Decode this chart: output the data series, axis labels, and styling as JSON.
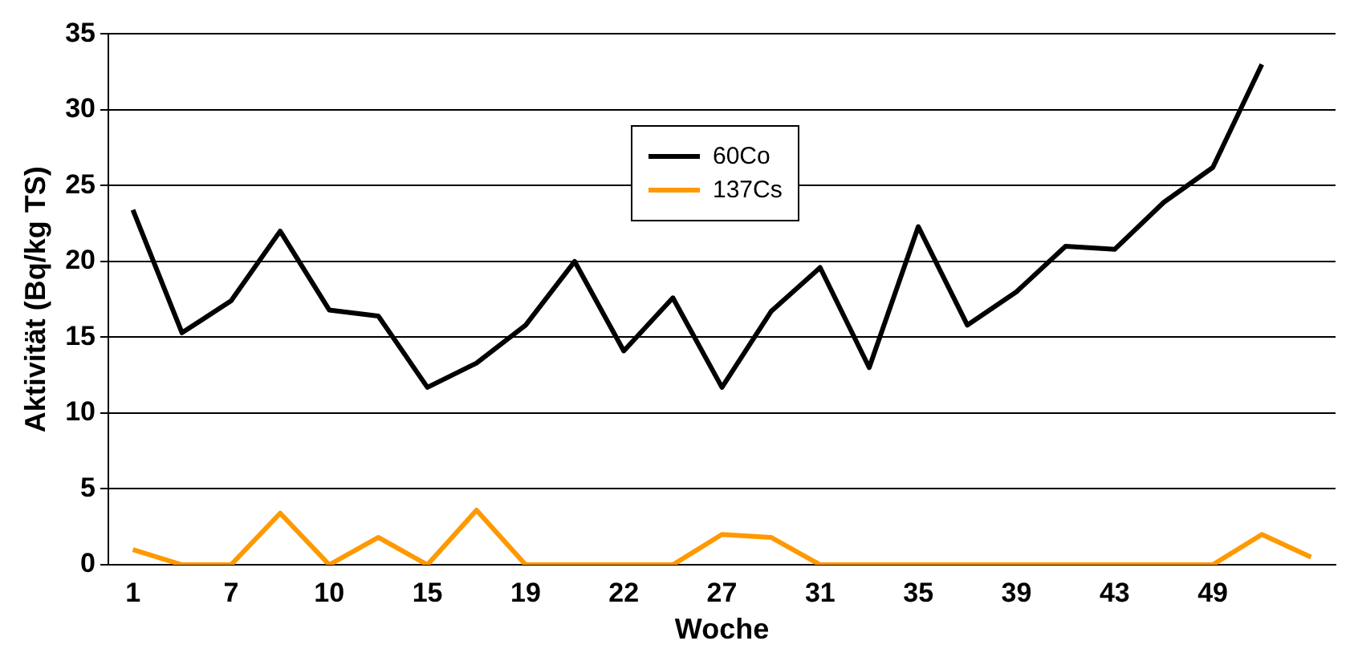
{
  "chart_data": {
    "type": "line",
    "xlabel": "Woche",
    "ylabel": "Aktivität (Bq/kg TS)",
    "categories": [
      "1",
      null,
      "7",
      null,
      "10",
      null,
      "15",
      null,
      "19",
      null,
      "22",
      null,
      "27",
      null,
      "31",
      null,
      "35",
      null,
      "39",
      null,
      "43",
      null,
      "49",
      null,
      null
    ],
    "series": [
      {
        "name": "60Co",
        "color": "#000000",
        "values": [
          23.4,
          15.3,
          17.4,
          22,
          16.8,
          16.4,
          11.7,
          13.3,
          15.8,
          20,
          14.1,
          17.6,
          11.7,
          16.7,
          19.6,
          13,
          22.3,
          15.8,
          18,
          21,
          20.8,
          23.9,
          26.2,
          33,
          null
        ]
      },
      {
        "name": "137Cs",
        "color": "#ff9900",
        "values": [
          1,
          0,
          0,
          3.4,
          0,
          1.8,
          0,
          3.6,
          0,
          0,
          0,
          0,
          2,
          1.8,
          0,
          0,
          0,
          0,
          0,
          0,
          0,
          0,
          0,
          2,
          0.5
        ]
      }
    ],
    "ylim": [
      0,
      35
    ],
    "yticks": [
      0,
      5,
      10,
      15,
      20,
      25,
      30,
      35
    ],
    "grid": "y",
    "legend": "top",
    "marker": "none",
    "line_style": "solid"
  }
}
